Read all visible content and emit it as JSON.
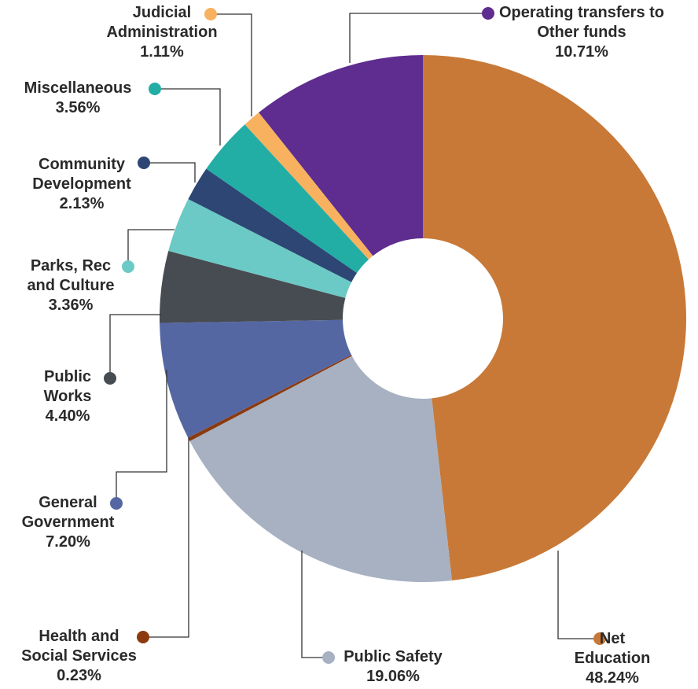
{
  "chart_data": {
    "type": "donut",
    "categories": [
      "Net Education",
      "Public Safety",
      "Health and Social Services",
      "General Government",
      "Public Works",
      "Parks, Rec and Culture",
      "Community Development",
      "Miscellaneous",
      "Judicial Administration",
      "Operating transfers to Other funds"
    ],
    "values": [
      48.24,
      19.06,
      0.23,
      7.2,
      4.4,
      3.36,
      2.13,
      3.56,
      1.11,
      10.71
    ],
    "value_labels": [
      "48.24%",
      "19.06%",
      "0.23%",
      "7.20%",
      "4.40%",
      "3.36%",
      "2.13%",
      "3.56%",
      "1.11%",
      "10.71%"
    ],
    "colors": [
      "#c87937",
      "#a7b1c2",
      "#8b3a0f",
      "#5567a3",
      "#474c52",
      "#6ccac6",
      "#2d4674",
      "#22ada5",
      "#f8b15f",
      "#5e2d8f"
    ]
  }
}
